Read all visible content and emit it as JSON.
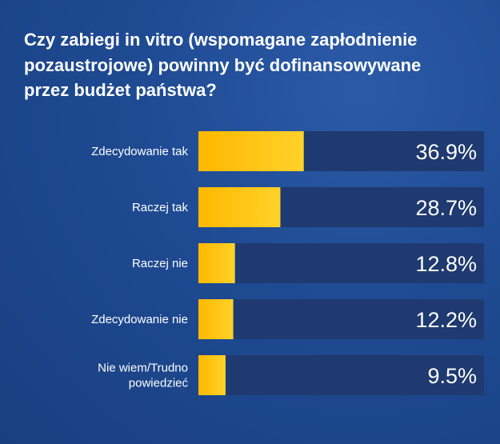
{
  "title": "Czy zabiegi in vitro (wspomagane zapłodnienie\npozaustrojowe) powinny być dofinansowywane\nprzez budżet  państwa?",
  "colors": {
    "background": "#1e4a92",
    "track": "#1e3a70",
    "bar_start": "#ffb800",
    "bar_end": "#ffd22a",
    "text": "#ffffff"
  },
  "chart_data": {
    "type": "bar",
    "orientation": "horizontal",
    "title": "Czy zabiegi in vitro (wspomagane zapłodnienie pozaustrojowe) powinny być dofinansowywane przez budżet  państwa?",
    "categories": [
      "Zdecydowanie tak",
      "Raczej tak",
      "Raczej nie",
      "Zdecydowanie nie",
      "Nie wiem/Trudno powiedzieć"
    ],
    "category_lines": [
      [
        "Zdecydowanie tak"
      ],
      [
        "Raczej tak"
      ],
      [
        "Raczej nie"
      ],
      [
        "Zdecydowanie nie"
      ],
      [
        "Nie wiem/Trudno",
        "powiedzieć"
      ]
    ],
    "values": [
      36.9,
      28.7,
      12.8,
      12.2,
      9.5
    ],
    "value_labels": [
      "36.9%",
      "28.7%",
      "12.8%",
      "12.2%",
      "9.5%"
    ],
    "unit": "%",
    "xlim": [
      0,
      100
    ],
    "grid": false,
    "legend": "none"
  }
}
